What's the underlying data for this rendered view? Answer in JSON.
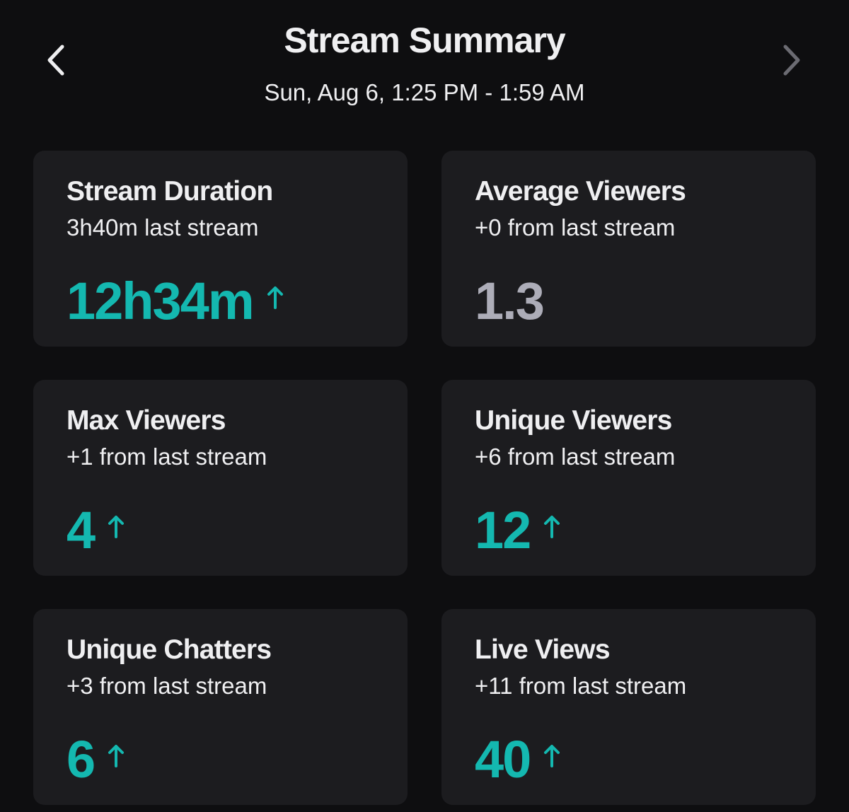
{
  "header": {
    "title": "Stream Summary",
    "subtitle": "Sun, Aug 6, 1:25 PM - 1:59 AM"
  },
  "cards": [
    {
      "title": "Stream Duration",
      "comparison": "3h40m last stream",
      "value": "12h34m",
      "trend": "up"
    },
    {
      "title": "Average Viewers",
      "comparison": "+0 from last stream",
      "value": "1.3",
      "trend": "none"
    },
    {
      "title": "Max Viewers",
      "comparison": "+1 from last stream",
      "value": "4",
      "trend": "up"
    },
    {
      "title": "Unique Viewers",
      "comparison": "+6 from last stream",
      "value": "12",
      "trend": "up"
    },
    {
      "title": "Unique Chatters",
      "comparison": "+3 from last stream",
      "value": "6",
      "trend": "up"
    },
    {
      "title": "Live Views",
      "comparison": "+11 from last stream",
      "value": "40",
      "trend": "up"
    }
  ]
}
